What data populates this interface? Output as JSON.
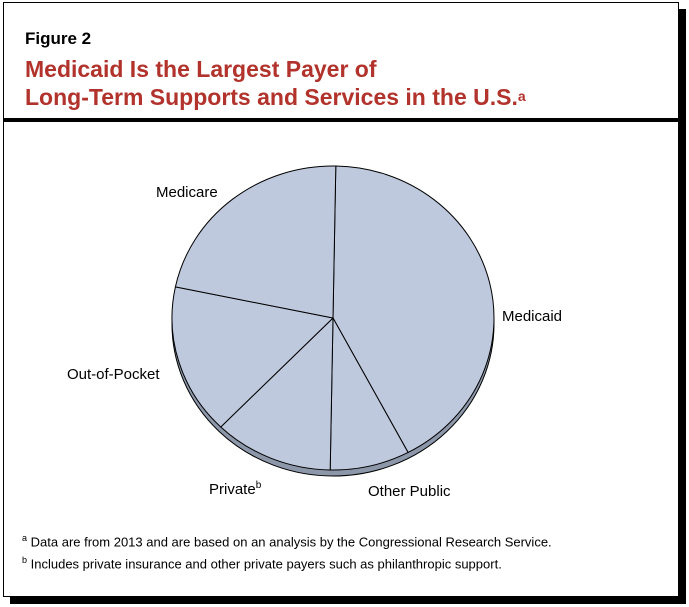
{
  "figure_label": "Figure 2",
  "chart_data": {
    "type": "pie",
    "title_line1": "Medicaid Is the Largest Payer of",
    "title_line2": "Long-Term Supports and Services in the U.S.",
    "title_footnote": "a",
    "slices": [
      {
        "label": "Medicaid",
        "value": 42
      },
      {
        "label": "Other Public",
        "value": 8
      },
      {
        "label": "Private",
        "footnote": "b",
        "value": 12
      },
      {
        "label": "Out-of-Pocket",
        "value": 16
      },
      {
        "label": "Medicare",
        "value": 22
      }
    ],
    "colors": {
      "slice": "#bfc9dd",
      "edge": "#000000",
      "title": "#b2322c"
    }
  },
  "footnotes": [
    {
      "marker": "a",
      "text": "Data are from 2013 and are based on an analysis by the Congressional Research Service."
    },
    {
      "marker": "b",
      "text": "Includes private insurance and other private payers such as philanthropic support."
    }
  ]
}
